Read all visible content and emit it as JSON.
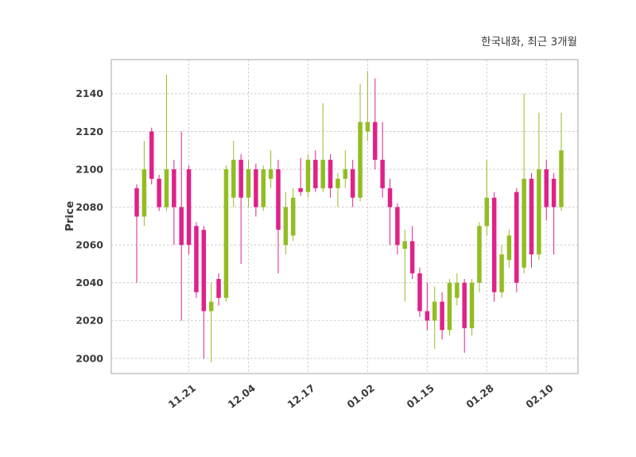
{
  "figure": {
    "title": "한국내화, 최근 3개월"
  },
  "chart_data": {
    "type": "candlestick",
    "title": "한국내화, 최근 3개월",
    "xlabel": "",
    "ylabel": "Price",
    "ylim": [
      1992,
      2158
    ],
    "yticks": [
      2000,
      2020,
      2040,
      2060,
      2080,
      2100,
      2120,
      2140
    ],
    "xticks": [
      {
        "index": 7,
        "label": "11.21"
      },
      {
        "index": 15,
        "label": "12.04"
      },
      {
        "index": 23,
        "label": "12.17"
      },
      {
        "index": 31,
        "label": "01.02"
      },
      {
        "index": 39,
        "label": "01.15"
      },
      {
        "index": 47,
        "label": "01.28"
      },
      {
        "index": 55,
        "label": "02.10"
      }
    ],
    "grid": true,
    "legend": false,
    "colors": {
      "up": "#92bd22",
      "down": "#e0218a",
      "grid": "#c9c9c9",
      "border": "#b5b5b5",
      "text": "#3a3a3a",
      "background": "#ffffff"
    },
    "ohlc_format": [
      "open",
      "high",
      "low",
      "close"
    ],
    "ohlc": [
      [
        2090,
        2092,
        2040,
        2075
      ],
      [
        2075,
        2115,
        2070,
        2100
      ],
      [
        2120,
        2122,
        2092,
        2095
      ],
      [
        2095,
        2097,
        2078,
        2080
      ],
      [
        2080,
        2150,
        2078,
        2100
      ],
      [
        2100,
        2105,
        2060,
        2080
      ],
      [
        2080,
        2120,
        2020,
        2060
      ],
      [
        2100,
        2102,
        2055,
        2060
      ],
      [
        2070,
        2072,
        2032,
        2035
      ],
      [
        2068,
        2070,
        2000,
        2025
      ],
      [
        2025,
        2040,
        1998,
        2030
      ],
      [
        2042,
        2045,
        2028,
        2032
      ],
      [
        2032,
        2102,
        2030,
        2100
      ],
      [
        2085,
        2115,
        2080,
        2105
      ],
      [
        2105,
        2108,
        2050,
        2085
      ],
      [
        2085,
        2105,
        2080,
        2100
      ],
      [
        2100,
        2103,
        2075,
        2080
      ],
      [
        2080,
        2102,
        2078,
        2100
      ],
      [
        2095,
        2110,
        2090,
        2100
      ],
      [
        2100,
        2105,
        2045,
        2068
      ],
      [
        2060,
        2088,
        2055,
        2080
      ],
      [
        2065,
        2090,
        2062,
        2085
      ],
      [
        2090,
        2106,
        2086,
        2088
      ],
      [
        2088,
        2108,
        2085,
        2105
      ],
      [
        2105,
        2110,
        2088,
        2090
      ],
      [
        2090,
        2135,
        2088,
        2105
      ],
      [
        2105,
        2108,
        2085,
        2090
      ],
      [
        2090,
        2098,
        2080,
        2095
      ],
      [
        2095,
        2110,
        2090,
        2100
      ],
      [
        2100,
        2105,
        2080,
        2085
      ],
      [
        2085,
        2145,
        2083,
        2125
      ],
      [
        2120,
        2152,
        2115,
        2125
      ],
      [
        2125,
        2148,
        2100,
        2105
      ],
      [
        2105,
        2125,
        2085,
        2090
      ],
      [
        2090,
        2095,
        2060,
        2080
      ],
      [
        2080,
        2082,
        2055,
        2060
      ],
      [
        2058,
        2068,
        2030,
        2062
      ],
      [
        2062,
        2070,
        2042,
        2045
      ],
      [
        2045,
        2048,
        2022,
        2025
      ],
      [
        2025,
        2040,
        2015,
        2020
      ],
      [
        2020,
        2038,
        2005,
        2030
      ],
      [
        2030,
        2035,
        2010,
        2015
      ],
      [
        2015,
        2042,
        2012,
        2040
      ],
      [
        2032,
        2045,
        2028,
        2040
      ],
      [
        2040,
        2042,
        2003,
        2016
      ],
      [
        2016,
        2042,
        2012,
        2040
      ],
      [
        2040,
        2072,
        2035,
        2070
      ],
      [
        2070,
        2105,
        2065,
        2085
      ],
      [
        2085,
        2088,
        2030,
        2035
      ],
      [
        2035,
        2060,
        2032,
        2055
      ],
      [
        2052,
        2068,
        2048,
        2065
      ],
      [
        2088,
        2090,
        2035,
        2040
      ],
      [
        2048,
        2140,
        2045,
        2095
      ],
      [
        2095,
        2098,
        2048,
        2055
      ],
      [
        2055,
        2130,
        2052,
        2100
      ],
      [
        2100,
        2105,
        2073,
        2080
      ],
      [
        2095,
        2098,
        2055,
        2080
      ],
      [
        2080,
        2130,
        2078,
        2110
      ]
    ]
  }
}
